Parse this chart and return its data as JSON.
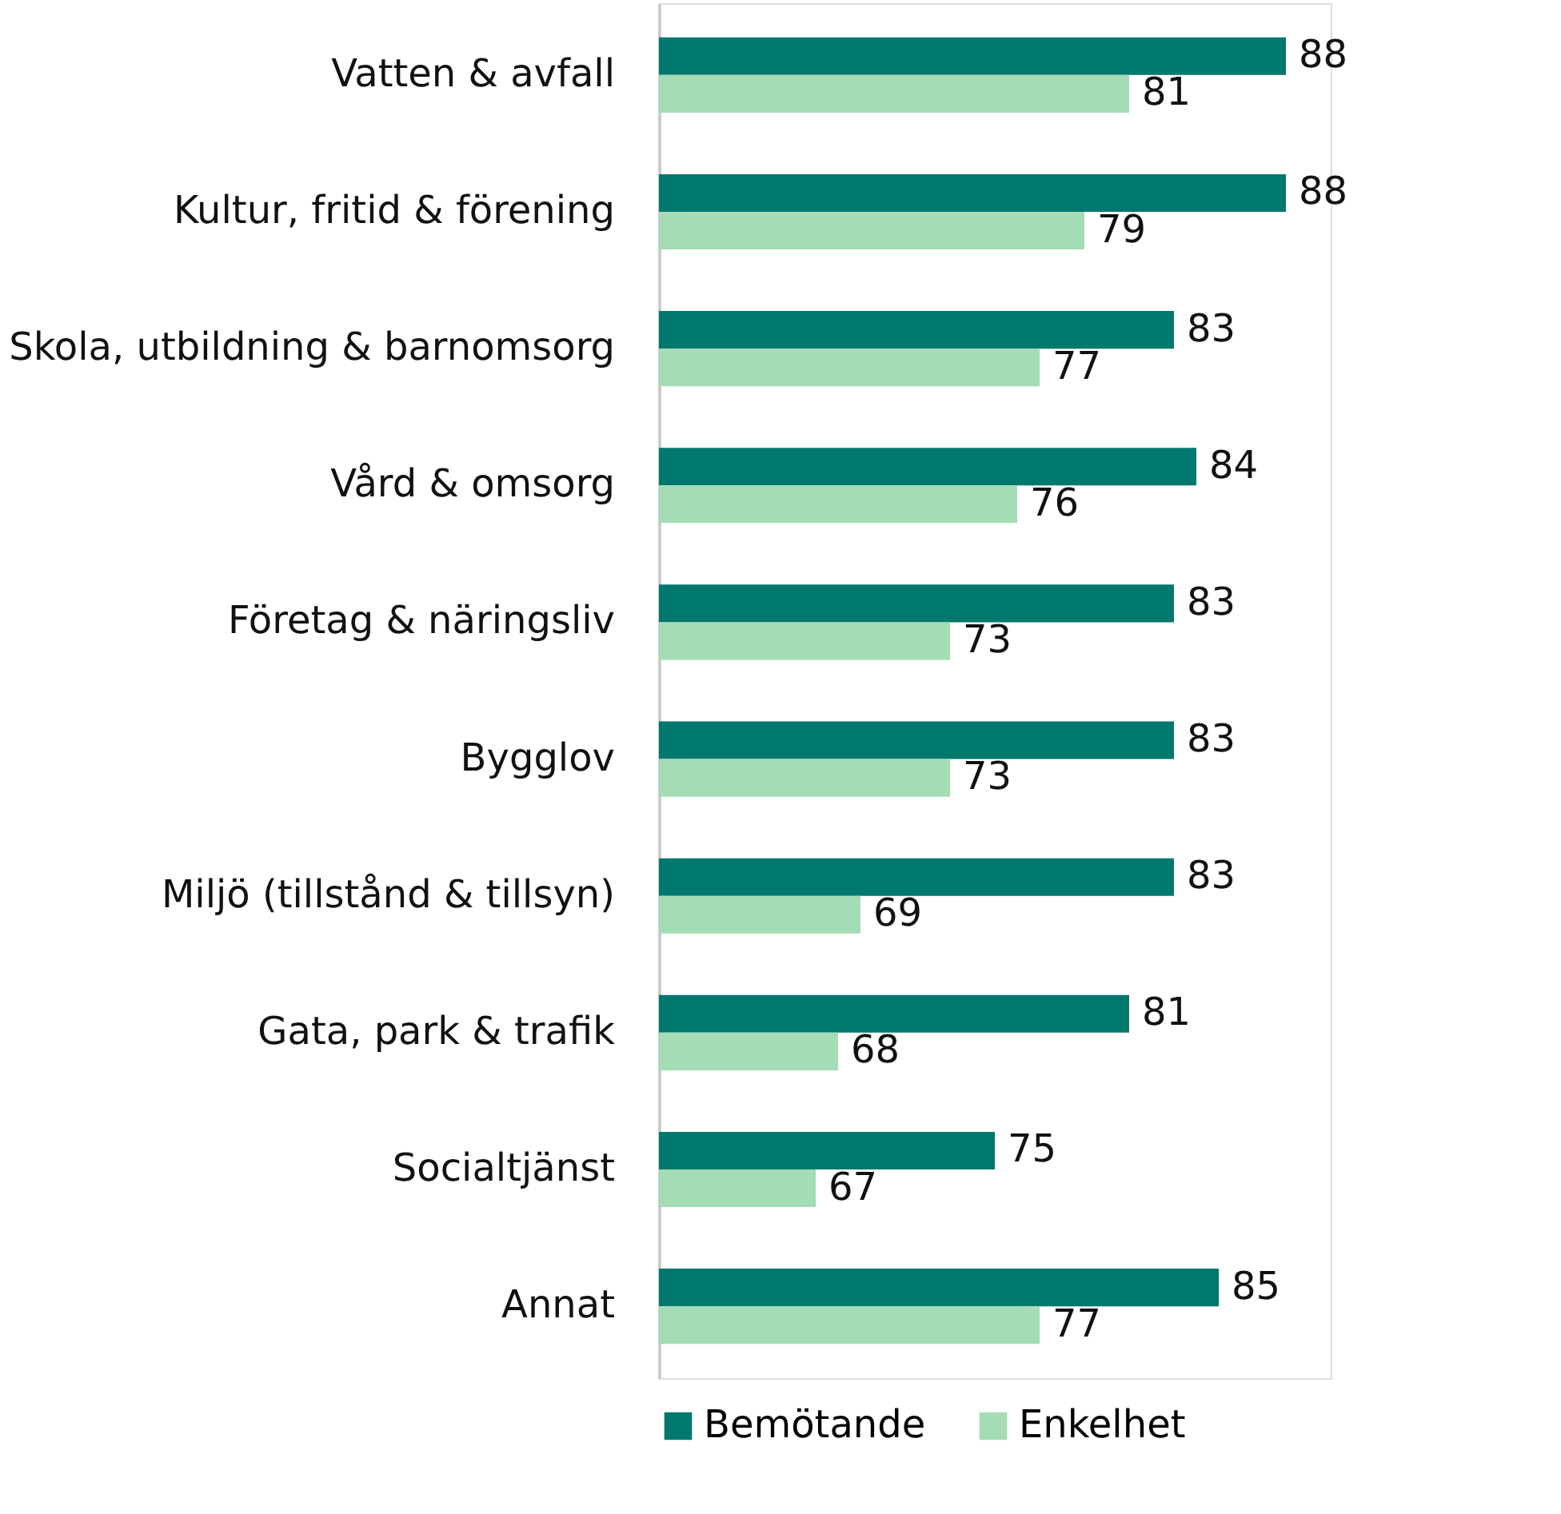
{
  "chart_data": {
    "type": "bar",
    "orientation": "horizontal",
    "categories": [
      "Vatten & avfall",
      "Kultur, fritid & förening",
      "Skola, utbildning & barnomsorg",
      "Vård & omsorg",
      "Företag & näringsliv",
      "Bygglov",
      "Miljö (tillstånd & tillsyn)",
      "Gata, park & trafik",
      "Socialtjänst",
      "Annat"
    ],
    "series": [
      {
        "name": "Bemötande",
        "color": "#00786e",
        "values": [
          88,
          88,
          83,
          84,
          83,
          83,
          83,
          81,
          75,
          85
        ]
      },
      {
        "name": "Enkelhet",
        "color": "#a3dcb5",
        "values": [
          81,
          79,
          77,
          76,
          73,
          73,
          69,
          68,
          67,
          77
        ]
      }
    ],
    "xlim": [
      60,
      90
    ],
    "tick_labels": "y",
    "data_labels": true,
    "grid": false,
    "legend": "bottom"
  }
}
